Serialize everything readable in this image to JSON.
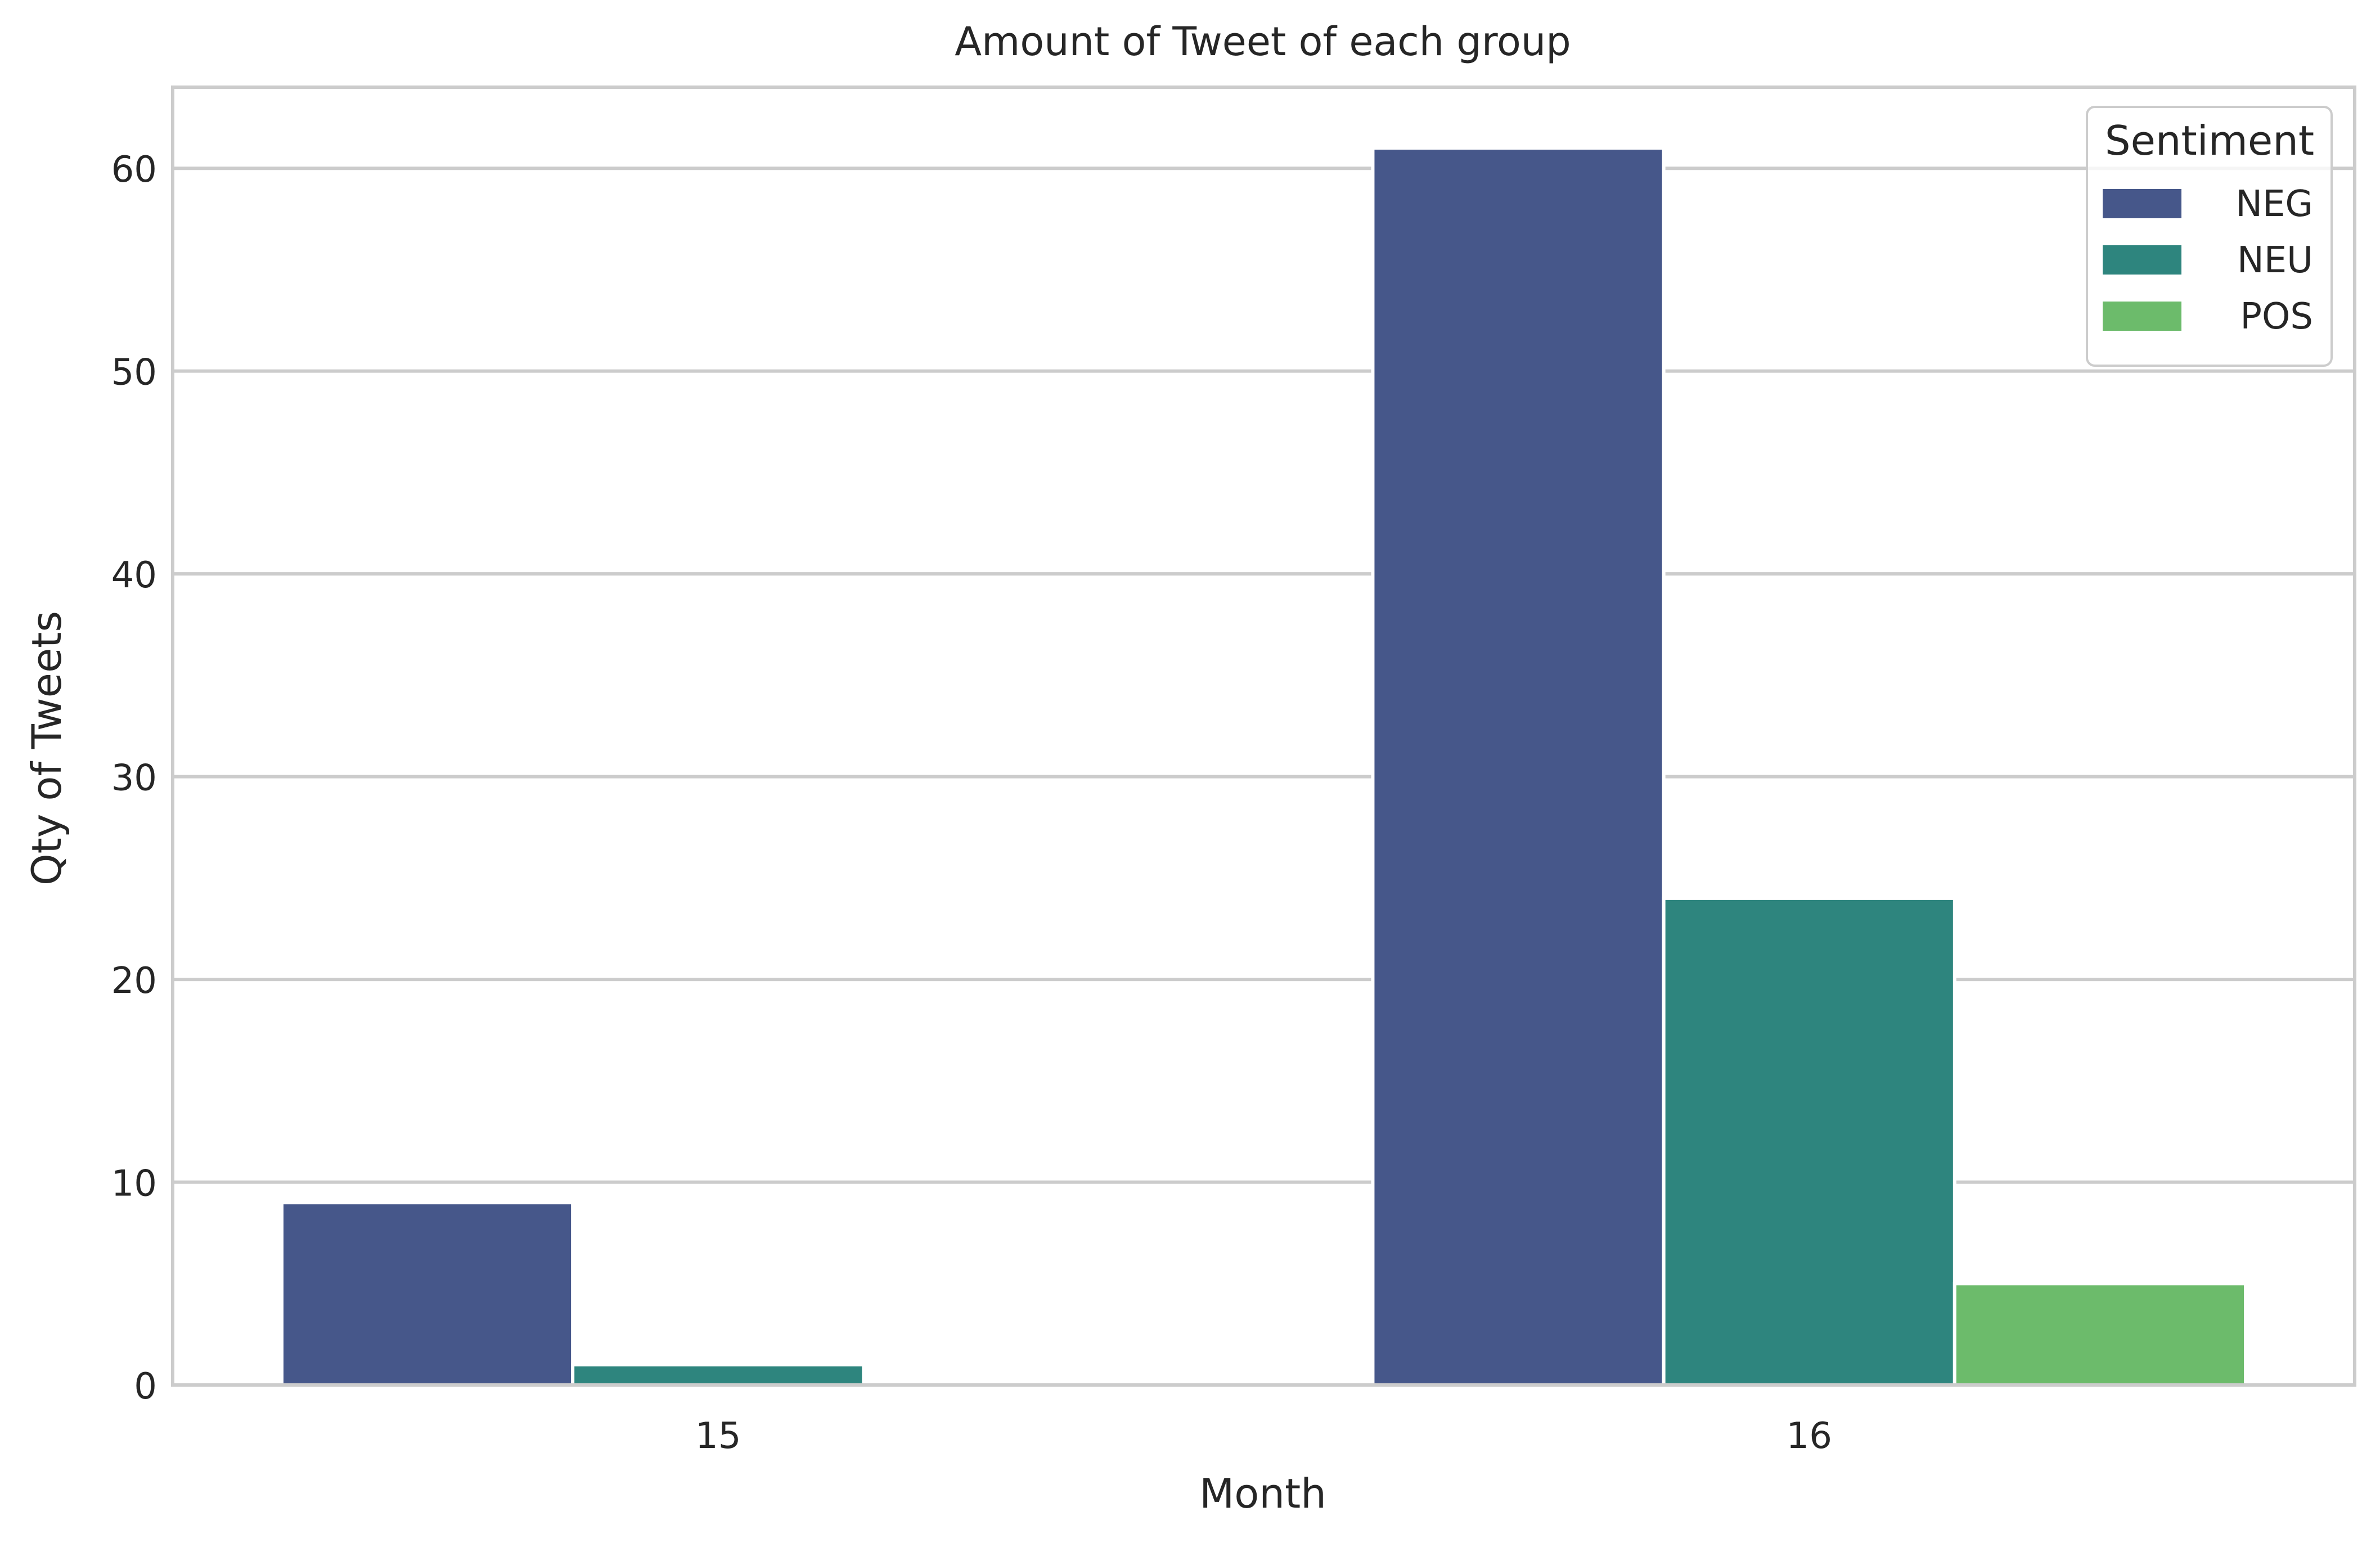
{
  "chart_data": {
    "type": "bar",
    "title": "Amount of Tweet of each group",
    "xlabel": "Month",
    "ylabel": "Qty of Tweets",
    "categories": [
      "15",
      "16"
    ],
    "ylim": [
      0,
      64
    ],
    "yticks": [
      0,
      10,
      20,
      30,
      40,
      50,
      60
    ],
    "grid": "horizontal",
    "legend": {
      "title": "Sentiment",
      "placement": "top-right"
    },
    "series": [
      {
        "name": "NEG",
        "color": "#46578a",
        "values": [
          9,
          61
        ]
      },
      {
        "name": "NEU",
        "color": "#2e857e",
        "values": [
          1,
          24
        ]
      },
      {
        "name": "POS",
        "color": "#6cbb6b",
        "values": [
          0,
          5
        ]
      }
    ]
  }
}
